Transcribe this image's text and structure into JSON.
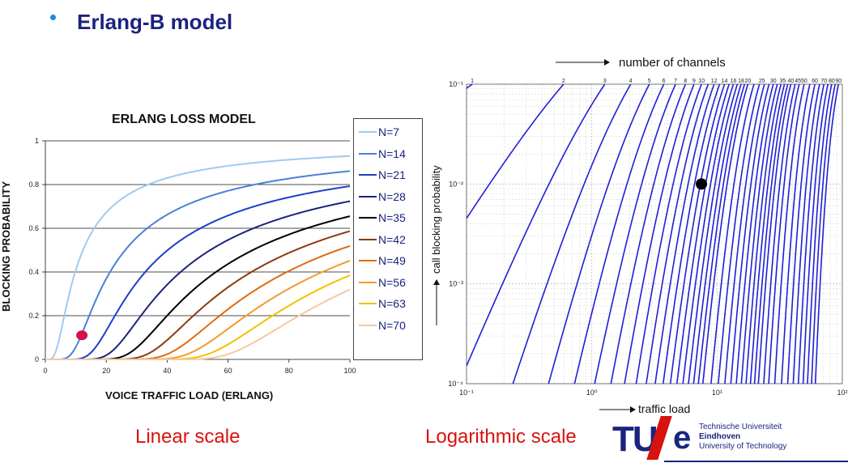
{
  "heading": "Erlang-B model",
  "left": {
    "caption": "Linear scale"
  },
  "right": {
    "caption": "Logarithmic scale"
  },
  "logo": {
    "tu": "TU",
    "e": "e",
    "line1": "Technische Universiteit",
    "line2": "Eindhoven",
    "line3": "University of Technology"
  },
  "colors": {
    "heading": "#1a237e",
    "caption": "#d8120f",
    "curve_blue": "#1f1fd6"
  },
  "chart_data": [
    {
      "type": "line",
      "title": "ERLANG LOSS MODEL",
      "xlabel": "VOICE TRAFFIC LOAD (ERLANG)",
      "ylabel": "BLOCKING PROBABILITY",
      "xlim": [
        0,
        100
      ],
      "ylim": [
        0,
        1
      ],
      "x_ticks": [
        "0",
        "20",
        "40",
        "60",
        "80",
        "100"
      ],
      "y_ticks": [
        "0",
        "0.2",
        "0.4",
        "0.6",
        "0.8",
        "1"
      ],
      "grid": "horizontal",
      "legend_position": "right",
      "series": [
        {
          "name": "N=7",
          "channels": 7,
          "color": "#9ecbf2"
        },
        {
          "name": "N=14",
          "channels": 14,
          "color": "#4a80d8"
        },
        {
          "name": "N=21",
          "channels": 21,
          "color": "#1f3fc8"
        },
        {
          "name": "N=28",
          "channels": 28,
          "color": "#1a237e"
        },
        {
          "name": "N=35",
          "channels": 35,
          "color": "#000000"
        },
        {
          "name": "N=42",
          "channels": 42,
          "color": "#8b3a0e"
        },
        {
          "name": "N=49",
          "channels": 49,
          "color": "#e06a10"
        },
        {
          "name": "N=56",
          "channels": 56,
          "color": "#f29a2e"
        },
        {
          "name": "N=63",
          "channels": 63,
          "color": "#f2c200"
        },
        {
          "name": "N=70",
          "channels": 70,
          "color": "#f6c8a0"
        }
      ],
      "marker": {
        "x": 12,
        "y": 0.11,
        "color": "#d6104c"
      }
    },
    {
      "type": "line",
      "title": "",
      "xlabel": "traffic load",
      "ylabel": "call blocking probability",
      "top_label": "number of channels",
      "x_scale": "log",
      "y_scale": "log",
      "xlim": [
        0.1,
        100
      ],
      "ylim": [
        0.0001,
        0.1
      ],
      "x_ticks": [
        "10⁻¹",
        "10⁰",
        "10¹",
        "10²"
      ],
      "y_ticks": [
        "10⁻¹",
        "10⁻²",
        "10⁻³",
        "10⁻⁴"
      ],
      "channel_labels": [
        "1",
        "2",
        "3",
        "4",
        "5",
        "6",
        "7",
        "8",
        "9",
        "10",
        "12",
        "14",
        "16",
        "18",
        "20",
        "25",
        "30",
        "35",
        "40",
        "45",
        "50",
        "60",
        "70",
        "80",
        "90"
      ],
      "channels": [
        1,
        2,
        3,
        4,
        5,
        6,
        7,
        8,
        9,
        10,
        11,
        12,
        13,
        14,
        15,
        16,
        17,
        18,
        19,
        20,
        22,
        24,
        26,
        28,
        30,
        32,
        34,
        36,
        38,
        40,
        43,
        46,
        50,
        55,
        60,
        65,
        70,
        75,
        80,
        85,
        90
      ],
      "marker": {
        "x": 7.5,
        "y": 0.01,
        "color": "#000000"
      }
    }
  ]
}
